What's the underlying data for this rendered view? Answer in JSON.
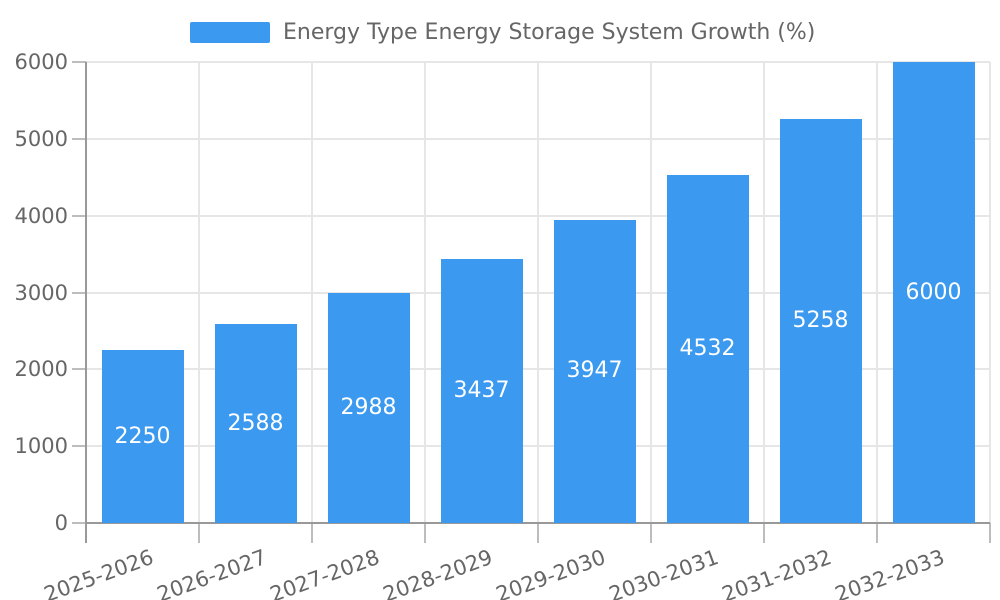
{
  "legend": {
    "label": "Energy Type Energy Storage System Growth (%)"
  },
  "chart_data": {
    "type": "bar",
    "title": "",
    "series_name": "Energy Type Energy Storage System Growth (%)",
    "categories": [
      "2025-2026",
      "2026-2027",
      "2027-2028",
      "2028-2029",
      "2029-2030",
      "2030-2031",
      "2031-2032",
      "2032-2033"
    ],
    "values": [
      2250,
      2588,
      2988,
      3437,
      3947,
      4532,
      5258,
      6000
    ],
    "xlabel": "",
    "ylabel": "",
    "ylim": [
      0,
      6000
    ],
    "yticks": [
      0,
      1000,
      2000,
      3000,
      4000,
      5000,
      6000
    ],
    "grid": {
      "horizontal": true,
      "vertical": true
    },
    "legend_position": "top-center",
    "value_labels_position": "inside-center",
    "x_tick_label_rotation_deg": 20,
    "colors": {
      "bar": "#3b99f0",
      "value_label": "#ffffff",
      "axis_line": "#999999",
      "tick_mark": "#bdbdbd",
      "grid_line": "#e6e6e6",
      "tick_label": "#666666",
      "legend_text": "#666666",
      "background": "#ffffff"
    }
  }
}
